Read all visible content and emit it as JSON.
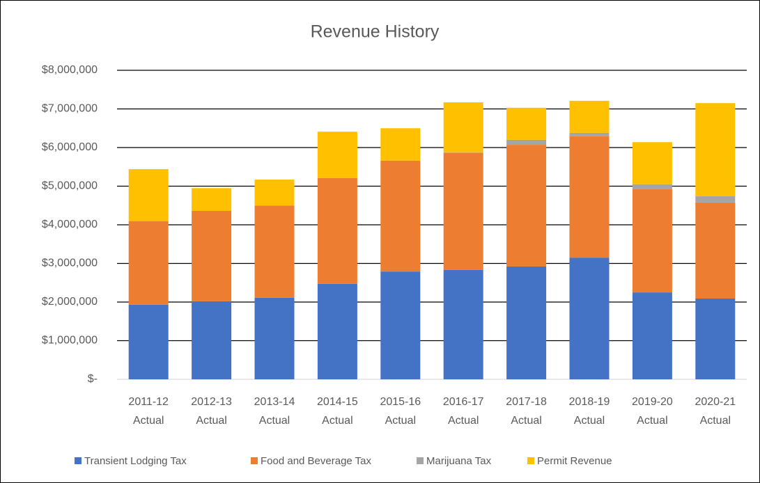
{
  "chart_data": {
    "type": "stacked_bar",
    "title": "Revenue History",
    "categories": [
      "2011-12 Actual",
      "2012-13 Actual",
      "2013-14 Actual",
      "2014-15 Actual",
      "2015-16 Actual",
      "2016-17 Actual",
      "2017-18 Actual",
      "2018-19 Actual",
      "2019-20 Actual",
      "2020-21 Actual"
    ],
    "series": [
      {
        "name": "Transient Lodging Tax",
        "color": "#4472c4",
        "values": [
          1930000,
          2020000,
          2110000,
          2470000,
          2790000,
          2830000,
          2920000,
          3150000,
          2250000,
          2090000
        ]
      },
      {
        "name": "Food and Beverage Tax",
        "color": "#ed7d31",
        "values": [
          2160000,
          2340000,
          2390000,
          2740000,
          2870000,
          3030000,
          3150000,
          3140000,
          2670000,
          2490000
        ]
      },
      {
        "name": "Marijuana Tax",
        "color": "#a5a5a5",
        "values": [
          0,
          0,
          0,
          0,
          0,
          20000,
          130000,
          90000,
          130000,
          160000
        ]
      },
      {
        "name": "Permit Revenue",
        "color": "#ffc000",
        "values": [
          1350000,
          590000,
          670000,
          1200000,
          840000,
          1290000,
          830000,
          830000,
          1090000,
          2410000
        ]
      }
    ],
    "ylim": [
      0,
      8000000
    ],
    "yticks": [
      {
        "value": 0,
        "label": "$-"
      },
      {
        "value": 1000000,
        "label": "$1,000,000"
      },
      {
        "value": 2000000,
        "label": "$2,000,000"
      },
      {
        "value": 3000000,
        "label": "$3,000,000"
      },
      {
        "value": 4000000,
        "label": "$4,000,000"
      },
      {
        "value": 5000000,
        "label": "$5,000,000"
      },
      {
        "value": 6000000,
        "label": "$6,000,000"
      },
      {
        "value": 7000000,
        "label": "$7,000,000"
      },
      {
        "value": 8000000,
        "label": "$8,000,000"
      }
    ],
    "grid": true,
    "legend": "bottom"
  }
}
